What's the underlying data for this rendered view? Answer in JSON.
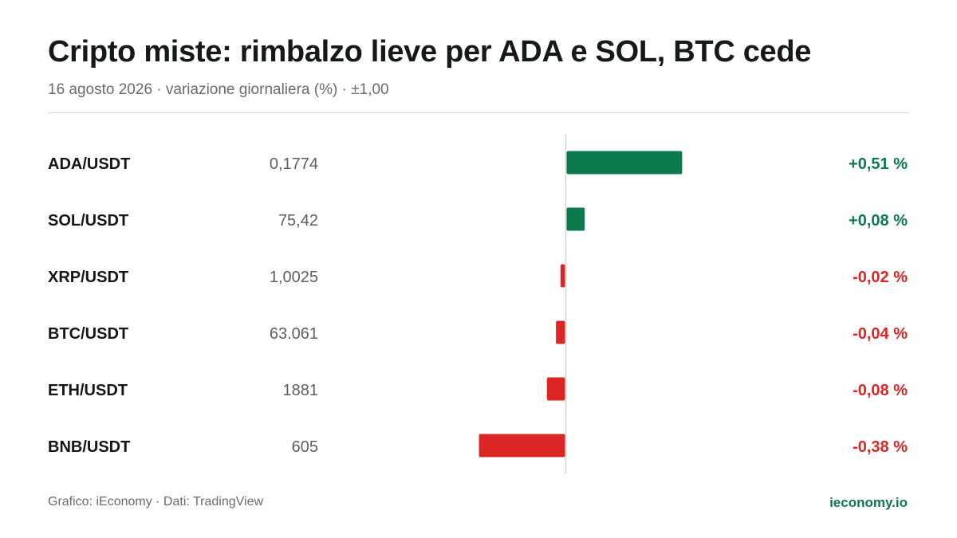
{
  "header": {
    "title": "Cripto miste: rimbalzo lieve per ADA e SOL, BTC cede",
    "subtitle": "16 agosto 2026 · variazione giornaliera (%) · ±1,00"
  },
  "footer": {
    "source": "Grafico: iEconomy · Dati: TradingView",
    "brand": "ieconomy.io"
  },
  "colors": {
    "positive": "#0d7a4e",
    "negative": "#dc2626",
    "axis": "#d4d4d4",
    "price_text": "#5f5f5f",
    "pair_text": "#151515"
  },
  "chart_data": {
    "type": "bar",
    "orientation": "horizontal",
    "categories": [
      "ADA/USDT",
      "SOL/USDT",
      "XRP/USDT",
      "BTC/USDT",
      "ETH/USDT",
      "BNB/USDT"
    ],
    "prices": [
      "0,1774",
      "75,42",
      "1,0025",
      "63.061",
      "1881",
      "605"
    ],
    "values": [
      0.51,
      0.08,
      -0.02,
      -0.04,
      -0.08,
      -0.38
    ],
    "value_labels": [
      "+0,51 %",
      "+0,08 %",
      "-0,02 %",
      "-0,04 %",
      "-0,08 %",
      "-0,38 %"
    ],
    "xlim": [
      -1.0,
      1.0
    ],
    "grid": false,
    "legend": "none"
  }
}
